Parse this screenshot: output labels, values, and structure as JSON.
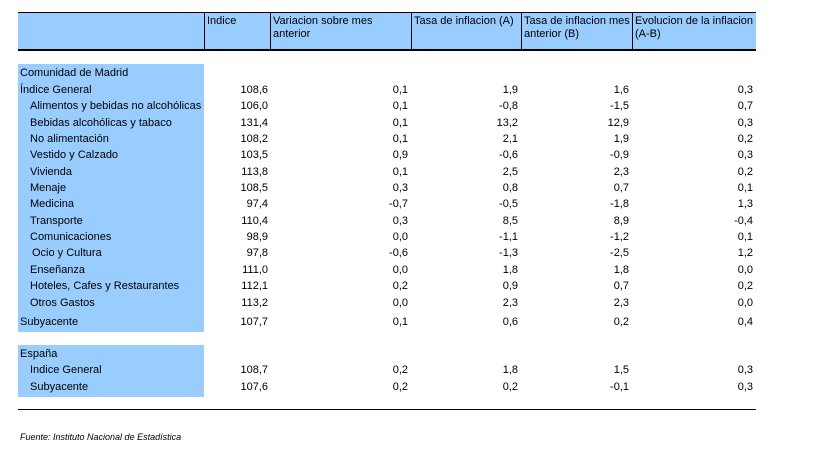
{
  "header": {
    "col_blank": "",
    "col_indice": "Indice",
    "col_variacion": "Variacion sobre mes anterior",
    "col_tasa_a": "Tasa de inflacion (A)",
    "col_tasa_b": "Tasa de inflacion mes anterior (B)",
    "col_evolucion": "Evolucion de la inflacion (A-B)"
  },
  "madrid": {
    "section_title": "Comunidad de Madrid",
    "rows": [
      {
        "label": "Índice General",
        "indice": "108,6",
        "variacion": "0,1",
        "tasa_a": "1,9",
        "tasa_b": "1,6",
        "evolucion": "0,3"
      },
      {
        "label": "Alimentos y bebidas no alcohólicas",
        "indice": "106,0",
        "variacion": "0,1",
        "tasa_a": "-0,8",
        "tasa_b": "-1,5",
        "evolucion": "0,7"
      },
      {
        "label": "Bebidas alcohólicas y tabaco",
        "indice": "131,4",
        "variacion": "0,1",
        "tasa_a": "13,2",
        "tasa_b": "12,9",
        "evolucion": "0,3"
      },
      {
        "label": "No alimentación",
        "indice": "108,2",
        "variacion": "0,1",
        "tasa_a": "2,1",
        "tasa_b": "1,9",
        "evolucion": "0,2"
      },
      {
        "label": "Vestido y Calzado",
        "indice": "103,5",
        "variacion": "0,9",
        "tasa_a": "-0,6",
        "tasa_b": "-0,9",
        "evolucion": "0,3"
      },
      {
        "label": "Vivienda",
        "indice": "113,8",
        "variacion": "0,1",
        "tasa_a": "2,5",
        "tasa_b": "2,3",
        "evolucion": "0,2"
      },
      {
        "label": "Menaje",
        "indice": "108,5",
        "variacion": "0,3",
        "tasa_a": "0,8",
        "tasa_b": "0,7",
        "evolucion": "0,1"
      },
      {
        "label": "Medicina",
        "indice": "97,4",
        "variacion": "-0,7",
        "tasa_a": "-0,5",
        "tasa_b": "-1,8",
        "evolucion": "1,3"
      },
      {
        "label": "Transporte",
        "indice": "110,4",
        "variacion": "0,3",
        "tasa_a": "8,5",
        "tasa_b": "8,9",
        "evolucion": "-0,4"
      },
      {
        "label": "Comunicaciones",
        "indice": "98,9",
        "variacion": "0,0",
        "tasa_a": "-1,1",
        "tasa_b": "-1,2",
        "evolucion": "0,1"
      },
      {
        "label": "Ocio y Cultura",
        "indice": "97,8",
        "variacion": "-0,6",
        "tasa_a": "-1,3",
        "tasa_b": "-2,5",
        "evolucion": "1,2"
      },
      {
        "label": "Enseñanza",
        "indice": "111,0",
        "variacion": "0,0",
        "tasa_a": "1,8",
        "tasa_b": "1,8",
        "evolucion": "0,0"
      },
      {
        "label": "Hoteles, Cafes y Restaurantes",
        "indice": "112,1",
        "variacion": "0,2",
        "tasa_a": "0,9",
        "tasa_b": "0,7",
        "evolucion": "0,2"
      },
      {
        "label": "Otros Gastos",
        "indice": "113,2",
        "variacion": "0,0",
        "tasa_a": "2,3",
        "tasa_b": "2,3",
        "evolucion": "0,0"
      },
      {
        "label": "Subyacente",
        "indice": "107,7",
        "variacion": "0,1",
        "tasa_a": "0,6",
        "tasa_b": "0,2",
        "evolucion": "0,4"
      }
    ]
  },
  "espana": {
    "section_title": "España",
    "rows": [
      {
        "label": "Indice General",
        "indice": "108,7",
        "variacion": "0,2",
        "tasa_a": "1,8",
        "tasa_b": "1,5",
        "evolucion": "0,3"
      },
      {
        "label": "Subyacente",
        "indice": "107,6",
        "variacion": "0,2",
        "tasa_a": "0,2",
        "tasa_b": "-0,1",
        "evolucion": "0,3"
      }
    ]
  },
  "footer": {
    "source": "Fuente: Instituto Nacional de Estadística"
  },
  "colors": {
    "accent_blue": "#99ccff"
  }
}
